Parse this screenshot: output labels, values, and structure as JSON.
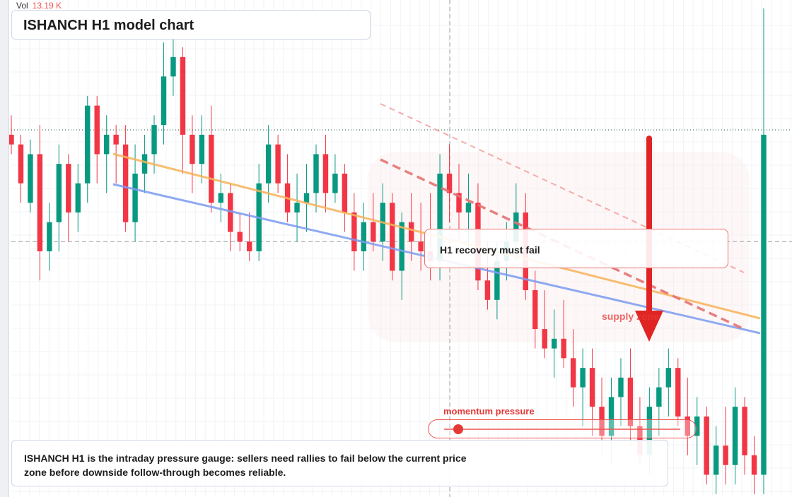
{
  "volume": {
    "label": "Vol",
    "value": "13.19 K"
  },
  "title": "ISHANCH H1 model chart",
  "callout": "H1 recovery must fail",
  "zone_label": "supply zone",
  "momentum": {
    "label": "momentum pressure",
    "level": 0.06
  },
  "note": "ISHANCH H1 is the intraday pressure gauge: sellers need rallies to fail below the current price zone before downside follow-through becomes reliable.",
  "colors": {
    "up": "#089981",
    "down": "#f23645",
    "trend_orange": "#f7b35a",
    "trend_blue": "#7c9cf0",
    "arrow": "#e02424"
  },
  "icons": {
    "direction": "arrow-down-icon"
  },
  "chart_data": {
    "type": "candlestick",
    "x_ticks": 80,
    "y_range": [
      0,
      100
    ],
    "hlines": {
      "dotted": 75,
      "dashed": 52
    },
    "vline_index": 46,
    "candles": [
      [
        74,
        78,
        70,
        72
      ],
      [
        72,
        74,
        60,
        64
      ],
      [
        60,
        73,
        58,
        70
      ],
      [
        70,
        76,
        44,
        50
      ],
      [
        50,
        60,
        46,
        56
      ],
      [
        56,
        72,
        50,
        68
      ],
      [
        68,
        70,
        52,
        58
      ],
      [
        58,
        68,
        54,
        64
      ],
      [
        64,
        82,
        60,
        80
      ],
      [
        80,
        82,
        64,
        70
      ],
      [
        70,
        78,
        62,
        74
      ],
      [
        74,
        76,
        64,
        72
      ],
      [
        72,
        76,
        54,
        56
      ],
      [
        56,
        72,
        52,
        66
      ],
      [
        66,
        74,
        62,
        70
      ],
      [
        70,
        78,
        66,
        76
      ],
      [
        76,
        93,
        72,
        86
      ],
      [
        86,
        96,
        82,
        90
      ],
      [
        90,
        92,
        66,
        74
      ],
      [
        74,
        78,
        62,
        68
      ],
      [
        68,
        78,
        64,
        74
      ],
      [
        74,
        80,
        58,
        60
      ],
      [
        60,
        66,
        56,
        62
      ],
      [
        62,
        64,
        50,
        54
      ],
      [
        54,
        58,
        50,
        52
      ],
      [
        52,
        58,
        48,
        50
      ],
      [
        50,
        68,
        48,
        64
      ],
      [
        64,
        76,
        60,
        72
      ],
      [
        72,
        74,
        62,
        64
      ],
      [
        64,
        70,
        56,
        58
      ],
      [
        58,
        66,
        52,
        60
      ],
      [
        60,
        68,
        54,
        62
      ],
      [
        62,
        72,
        58,
        70
      ],
      [
        70,
        74,
        58,
        62
      ],
      [
        62,
        70,
        60,
        66
      ],
      [
        66,
        68,
        54,
        58
      ],
      [
        58,
        62,
        46,
        50
      ],
      [
        50,
        60,
        46,
        56
      ],
      [
        56,
        62,
        50,
        52
      ],
      [
        52,
        64,
        48,
        60
      ],
      [
        60,
        62,
        44,
        46
      ],
      [
        46,
        58,
        40,
        56
      ],
      [
        56,
        62,
        48,
        52
      ],
      [
        52,
        60,
        46,
        50
      ],
      [
        50,
        62,
        44,
        48
      ],
      [
        48,
        70,
        44,
        66
      ],
      [
        66,
        72,
        56,
        62
      ],
      [
        62,
        68,
        52,
        58
      ],
      [
        58,
        66,
        50,
        60
      ],
      [
        60,
        64,
        42,
        44
      ],
      [
        44,
        52,
        38,
        40
      ],
      [
        40,
        52,
        36,
        48
      ],
      [
        48,
        56,
        44,
        52
      ],
      [
        52,
        64,
        48,
        58
      ],
      [
        58,
        62,
        40,
        42
      ],
      [
        42,
        46,
        30,
        34
      ],
      [
        34,
        42,
        28,
        30
      ],
      [
        30,
        38,
        24,
        32
      ],
      [
        32,
        40,
        26,
        28
      ],
      [
        28,
        34,
        18,
        22
      ],
      [
        22,
        30,
        14,
        26
      ],
      [
        26,
        30,
        12,
        18
      ],
      [
        18,
        24,
        8,
        12
      ],
      [
        12,
        24,
        6,
        20
      ],
      [
        20,
        28,
        14,
        24
      ],
      [
        24,
        30,
        10,
        14
      ],
      [
        14,
        20,
        6,
        8
      ],
      [
        8,
        22,
        4,
        18
      ],
      [
        18,
        26,
        12,
        22
      ],
      [
        22,
        30,
        16,
        26
      ],
      [
        26,
        28,
        14,
        16
      ],
      [
        16,
        24,
        8,
        12
      ],
      [
        12,
        20,
        6,
        16
      ],
      [
        16,
        18,
        2,
        4
      ],
      [
        4,
        14,
        0,
        10
      ],
      [
        10,
        18,
        2,
        6
      ],
      [
        6,
        22,
        2,
        18
      ],
      [
        18,
        20,
        4,
        8
      ],
      [
        8,
        12,
        0,
        4
      ],
      [
        4,
        100,
        0,
        74
      ]
    ]
  }
}
